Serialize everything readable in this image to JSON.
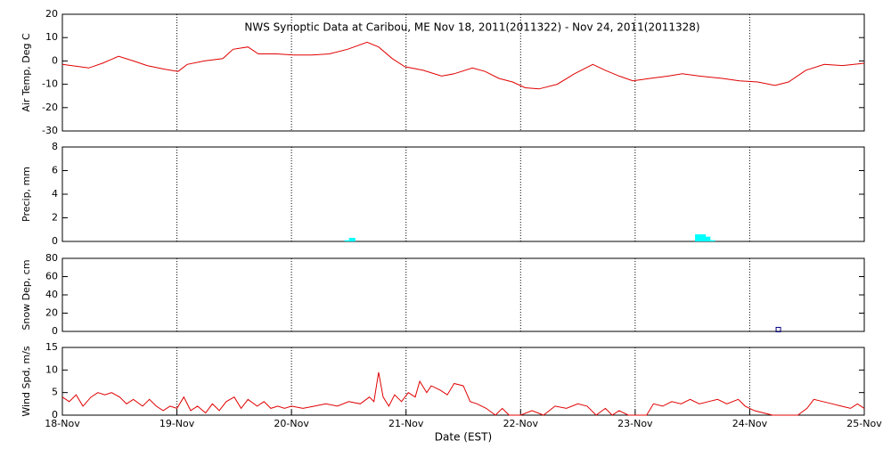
{
  "chart_data": [
    {
      "type": "line",
      "title": "NWS Synoptic Data at Caribou, ME   Nov 18, 2011(2011322) - Nov 24, 2011(2011328)",
      "y_label": "Air Temp, Deg C",
      "color": "#e00000",
      "xlim": [
        18,
        25
      ],
      "ylim": [
        -30,
        20
      ],
      "yticks": [
        -30,
        -20,
        -10,
        0,
        10,
        20
      ],
      "grid": true,
      "x": [
        18.0,
        18.23,
        18.35,
        18.49,
        18.62,
        18.74,
        18.89,
        19.01,
        19.09,
        19.24,
        19.4,
        19.49,
        19.62,
        19.71,
        19.87,
        20.02,
        20.18,
        20.33,
        20.49,
        20.66,
        20.76,
        20.88,
        20.99,
        21.15,
        21.31,
        21.42,
        21.58,
        21.69,
        21.81,
        21.93,
        22.04,
        22.16,
        22.32,
        22.47,
        22.63,
        22.74,
        22.86,
        22.98,
        23.13,
        23.29,
        23.41,
        23.56,
        23.76,
        23.91,
        24.07,
        24.22,
        24.34,
        24.49,
        24.65,
        24.81,
        25.0
      ],
      "values": [
        -1.5,
        -3,
        -1,
        2,
        0,
        -2,
        -3.5,
        -4.5,
        -1.5,
        0,
        1,
        5,
        6,
        3,
        3,
        2.5,
        2.5,
        3,
        5,
        8,
        6,
        1,
        -2.5,
        -4,
        -6.5,
        -5.5,
        -3,
        -4.5,
        -7.5,
        -9,
        -11.5,
        -12,
        -10,
        -5.5,
        -1.5,
        -4,
        -6.5,
        -8.5,
        -7.5,
        -6.5,
        -5.5,
        -6.5,
        -7.5,
        -8.5,
        -9,
        -10.5,
        -9,
        -4,
        -1.5,
        -2,
        -1
      ]
    },
    {
      "type": "bar",
      "y_label": "Precip, mm",
      "color": "#00ffff",
      "xlim": [
        18,
        25
      ],
      "ylim": [
        0,
        8
      ],
      "yticks": [
        0,
        2,
        4,
        6,
        8
      ],
      "grid": true,
      "x": [
        20.49,
        20.53,
        23.55,
        23.59,
        23.63,
        23.67
      ],
      "values": [
        0.1,
        0.3,
        0.6,
        0.6,
        0.4,
        0.1
      ]
    },
    {
      "type": "scatter",
      "y_label": "Snow Dep, cm",
      "color": "#000080",
      "xlim": [
        18,
        25
      ],
      "ylim": [
        0,
        80
      ],
      "yticks": [
        0,
        20,
        40,
        60,
        80
      ],
      "grid": true,
      "x": [
        24.25
      ],
      "values": [
        2
      ]
    },
    {
      "type": "line",
      "y_label": "Wind Spd, m/s",
      "x_label": "Date (EST)",
      "color": "#e00000",
      "xlim": [
        18,
        25
      ],
      "ylim": [
        0,
        15
      ],
      "yticks": [
        0,
        5,
        10,
        15
      ],
      "grid": true,
      "xticks": [
        {
          "value": 18,
          "label": "18-Nov"
        },
        {
          "value": 19,
          "label": "19-Nov"
        },
        {
          "value": 20,
          "label": "20-Nov"
        },
        {
          "value": 21,
          "label": "21-Nov"
        },
        {
          "value": 22,
          "label": "22-Nov"
        },
        {
          "value": 23,
          "label": "23-Nov"
        },
        {
          "value": 24,
          "label": "24-Nov"
        },
        {
          "value": 25,
          "label": "25-Nov"
        }
      ],
      "x": [
        18.0,
        18.06,
        18.12,
        18.18,
        18.25,
        18.31,
        18.37,
        18.43,
        18.5,
        18.56,
        18.62,
        18.7,
        18.76,
        18.82,
        18.88,
        18.94,
        19.0,
        19.06,
        19.12,
        19.18,
        19.25,
        19.31,
        19.37,
        19.43,
        19.5,
        19.56,
        19.62,
        19.7,
        19.76,
        19.82,
        19.88,
        19.94,
        20.0,
        20.1,
        20.2,
        20.3,
        20.4,
        20.5,
        20.6,
        20.68,
        20.72,
        20.76,
        20.8,
        20.85,
        20.9,
        20.96,
        21.02,
        21.08,
        21.12,
        21.18,
        21.22,
        21.3,
        21.36,
        21.42,
        21.5,
        21.56,
        21.62,
        21.7,
        21.78,
        21.84,
        21.9,
        22.0,
        22.1,
        22.2,
        22.3,
        22.4,
        22.5,
        22.58,
        22.66,
        22.74,
        22.8,
        22.86,
        22.94,
        23.0,
        23.1,
        23.16,
        23.24,
        23.32,
        23.4,
        23.48,
        23.56,
        23.64,
        23.72,
        23.8,
        23.9,
        23.96,
        24.04,
        24.12,
        24.2,
        24.3,
        24.42,
        24.5,
        24.56,
        24.64,
        24.72,
        24.8,
        24.88,
        24.94,
        25.0
      ],
      "values": [
        4,
        3,
        4.5,
        2,
        4,
        5,
        4.5,
        5,
        4,
        2.5,
        3.5,
        2,
        3.5,
        2,
        1,
        2,
        1.5,
        4,
        1,
        2,
        0.5,
        2.5,
        1,
        3,
        4,
        1.5,
        3.5,
        2,
        3,
        1.5,
        2,
        1.5,
        2,
        1.5,
        2,
        2.5,
        2,
        3,
        2.5,
        4,
        3,
        9.5,
        4,
        2,
        4.5,
        3,
        5,
        4,
        7.5,
        5,
        6.5,
        5.5,
        4.5,
        7,
        6.5,
        3,
        2.5,
        1.5,
        0,
        1.5,
        0,
        0,
        1,
        0,
        2,
        1.5,
        2.5,
        2,
        0,
        1.5,
        0,
        1,
        0,
        0,
        0,
        2.5,
        2,
        3,
        2.5,
        3.5,
        2.5,
        3,
        3.5,
        2.5,
        3.5,
        2,
        1,
        0.5,
        0,
        0,
        0,
        1.5,
        3.5,
        3,
        2.5,
        2,
        1.5,
        2.5,
        1.5
      ]
    }
  ]
}
